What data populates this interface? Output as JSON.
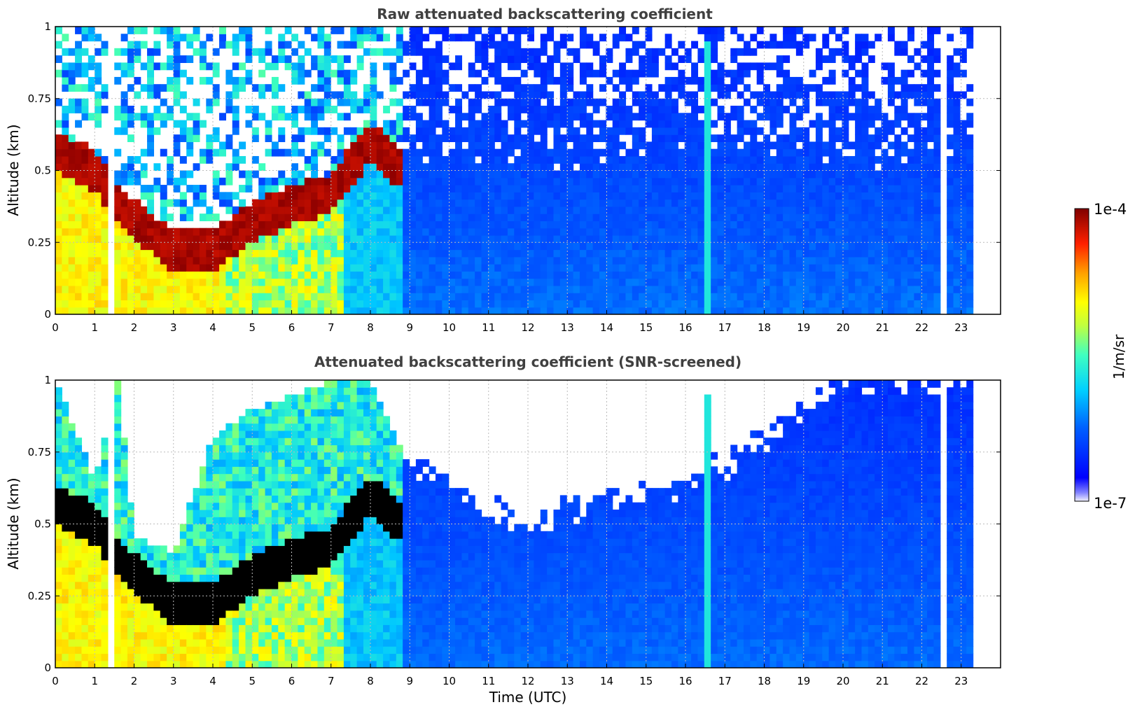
{
  "chart_data": [
    {
      "type": "heatmap",
      "title": "Raw attenuated backscattering coefficient",
      "xlabel": "",
      "ylabel": "Altitude (km)",
      "xlim": [
        0,
        24
      ],
      "ylim": [
        0,
        1
      ],
      "xticks": [
        "0",
        "1",
        "2",
        "3",
        "4",
        "5",
        "6",
        "7",
        "8",
        "9",
        "10",
        "11",
        "12",
        "13",
        "14",
        "15",
        "16",
        "17",
        "18",
        "19",
        "20",
        "21",
        "22",
        "23"
      ],
      "yticks": [
        "0",
        "0.25",
        "0.5",
        "0.75",
        "1"
      ],
      "grid": true,
      "data_extent_hours": [
        0,
        23.3
      ],
      "description_of_features": {
        "boundary_layer_top_km_by_hour": [
          [
            0,
            0.57
          ],
          [
            1,
            0.5
          ],
          [
            1.5,
            0.4
          ],
          [
            2,
            0.33
          ],
          [
            3,
            0.22
          ],
          [
            4,
            0.22
          ],
          [
            5,
            0.32
          ],
          [
            6,
            0.38
          ],
          [
            7,
            0.42
          ],
          [
            8,
            0.6
          ],
          [
            8.8,
            0.5
          ]
        ],
        "clear_gaps_hours": [
          1.45,
          22.55
        ],
        "plume_hour": 16.5
      }
    },
    {
      "type": "heatmap",
      "title": "Attenuated backscattering coefficient (SNR-screened)",
      "xlabel": "Time (UTC)",
      "ylabel": "Altitude (km)",
      "xlim": [
        0,
        24
      ],
      "ylim": [
        0,
        1
      ],
      "xticks": [
        "0",
        "1",
        "2",
        "3",
        "4",
        "5",
        "6",
        "7",
        "8",
        "9",
        "10",
        "11",
        "12",
        "13",
        "14",
        "15",
        "16",
        "17",
        "18",
        "19",
        "20",
        "21",
        "22",
        "23"
      ],
      "yticks": [
        "0",
        "0.25",
        "0.5",
        "0.75",
        "1"
      ],
      "grid": true,
      "data_extent_hours": [
        0,
        23.3
      ],
      "screened_top_km_by_hour": [
        [
          0,
          1
        ],
        [
          1,
          0.65
        ],
        [
          1.6,
          1
        ],
        [
          2,
          0.45
        ],
        [
          3,
          0.4
        ],
        [
          4,
          0.8
        ],
        [
          5,
          0.9
        ],
        [
          7,
          1
        ],
        [
          8,
          1
        ],
        [
          9,
          0.7
        ],
        [
          10,
          0.65
        ],
        [
          11,
          0.55
        ],
        [
          12,
          0.5
        ],
        [
          13,
          0.55
        ],
        [
          14,
          0.6
        ],
        [
          15,
          0.6
        ],
        [
          16,
          0.65
        ],
        [
          17,
          0.7
        ],
        [
          18,
          0.8
        ],
        [
          19,
          0.9
        ],
        [
          20,
          1
        ],
        [
          23.3,
          1
        ]
      ]
    }
  ],
  "colorbar": {
    "label": "1/m/sr",
    "max_label": "1e-4",
    "min_label": "1e-7",
    "colormap": "jet"
  },
  "colors": {
    "low": "#1a1aff",
    "mid": "#00d4ff",
    "high": "#ffd700",
    "peak": "#b00000",
    "saturated_screened": "#000000"
  }
}
